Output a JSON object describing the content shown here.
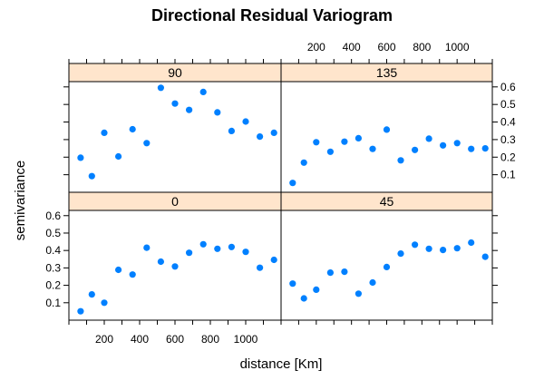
{
  "chart_data": {
    "type": "scatter",
    "title": "Directional Residual Variogram",
    "xlabel": "distance [Km]",
    "ylabel": "semivariance",
    "xlim": [
      0,
      1200
    ],
    "ylim": [
      0,
      0.63
    ],
    "x_ticks": [
      200,
      400,
      600,
      800,
      1000
    ],
    "x_tick_labels": [
      "200",
      "400",
      "600",
      "800",
      "1000"
    ],
    "y_ticks": [
      0.1,
      0.2,
      0.3,
      0.4,
      0.5,
      0.6
    ],
    "y_tick_labels": [
      "0.1",
      "0.2",
      "0.3",
      "0.4",
      "0.5",
      "0.6"
    ],
    "point_color": "#0080ff",
    "strip_color": "#ffe5cc",
    "panels": [
      {
        "label": "90",
        "x": [
          66,
          130,
          200,
          280,
          360,
          440,
          520,
          600,
          680,
          760,
          840,
          920,
          1000,
          1080,
          1160
        ],
        "y": [
          0.197,
          0.092,
          0.339,
          0.204,
          0.359,
          0.28,
          0.595,
          0.505,
          0.469,
          0.571,
          0.455,
          0.349,
          0.403,
          0.317,
          0.339
        ]
      },
      {
        "label": "135",
        "x": [
          66,
          130,
          200,
          280,
          360,
          440,
          520,
          600,
          680,
          760,
          840,
          920,
          1000,
          1080,
          1160
        ],
        "y": [
          0.053,
          0.169,
          0.285,
          0.231,
          0.288,
          0.308,
          0.247,
          0.357,
          0.182,
          0.241,
          0.305,
          0.267,
          0.28,
          0.247,
          0.25
        ]
      },
      {
        "label": "0",
        "x": [
          66,
          130,
          200,
          280,
          360,
          440,
          520,
          600,
          680,
          760,
          840,
          920,
          1000,
          1080,
          1160
        ],
        "y": [
          0.051,
          0.148,
          0.1,
          0.289,
          0.262,
          0.416,
          0.336,
          0.308,
          0.387,
          0.436,
          0.41,
          0.42,
          0.392,
          0.301,
          0.346
        ]
      },
      {
        "label": "45",
        "x": [
          66,
          130,
          200,
          280,
          360,
          440,
          520,
          600,
          680,
          760,
          840,
          920,
          1000,
          1080,
          1160
        ],
        "y": [
          0.21,
          0.125,
          0.175,
          0.273,
          0.278,
          0.152,
          0.216,
          0.305,
          0.382,
          0.433,
          0.41,
          0.403,
          0.413,
          0.445,
          0.364
        ]
      }
    ]
  }
}
